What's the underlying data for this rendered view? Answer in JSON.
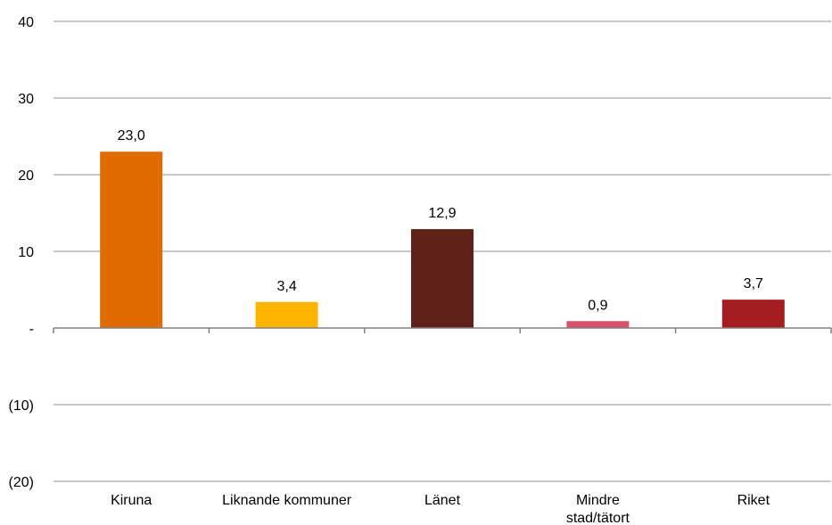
{
  "chart_data": {
    "type": "bar",
    "categories": [
      "Kiruna",
      "Liknande kommuner",
      "Länet",
      "Mindre stad/tätort",
      "Riket"
    ],
    "category_lines": [
      [
        "Kiruna"
      ],
      [
        "Liknande kommuner"
      ],
      [
        "Länet"
      ],
      [
        "Mindre",
        "stad/tätort"
      ],
      [
        "Riket"
      ]
    ],
    "values": [
      23.0,
      3.4,
      12.9,
      0.9,
      3.7
    ],
    "value_labels": [
      "23,0",
      "3,4",
      "12,9",
      "0,9",
      "3,7"
    ],
    "colors": [
      "#e06b00",
      "#ffb400",
      "#5e2219",
      "#d6546a",
      "#a31d21"
    ],
    "ylim": [
      -20,
      40
    ],
    "yticks": [
      40,
      30,
      20,
      10,
      0,
      -10,
      -20
    ],
    "ytick_labels": [
      "40",
      "30",
      "20",
      "10",
      "-",
      "(10)",
      "(20)"
    ],
    "grid": true,
    "gridline_color": "#a6a6a6",
    "title": "",
    "xlabel": "",
    "ylabel": ""
  }
}
